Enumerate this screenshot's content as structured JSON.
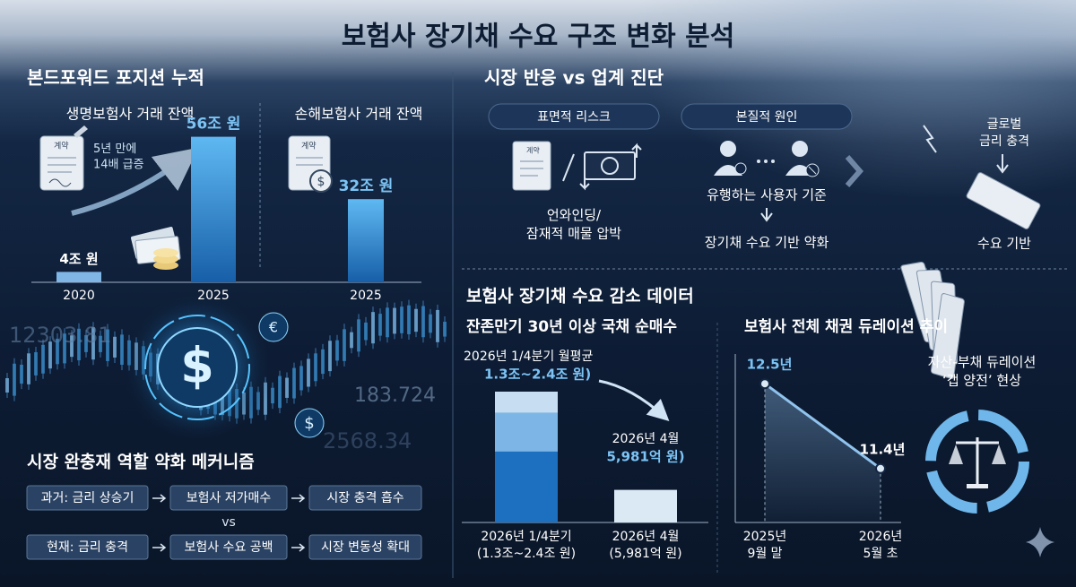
{
  "title": "보험사 장기채 수요 구조 변화 분석",
  "bond_forward": {
    "heading": "본드포워드 포지션 누적",
    "contract_label": "계약",
    "growth_note": "5년 만에\n14배 급증"
  },
  "market": {
    "heading": "시장 반응 vs 업계 진단",
    "surface_risk": "표면적 리스크",
    "root_cause": "본질적 원인",
    "unwinding": "언와인딩/\n잠재적 매물 압박",
    "user_standard": "유행하는 사용자 기준",
    "demand_weakening": "장기채 수요 기반 약화",
    "global_shock": "글로벌\n금리 충격",
    "demand_base": "수요 기반"
  },
  "decor_numbers": [
    "12303.81",
    "183.724",
    "2568.34"
  ],
  "decor_symbols": {
    "dollar": "$",
    "euro": "€"
  },
  "mechanism": {
    "heading": "시장 완충재 역할 약화 메커니즘",
    "rows": [
      [
        "과거: 금리 상승기",
        "보험사 저가매수",
        "시장 충격 흡수"
      ],
      [
        "현재: 금리 충격",
        "보험사 수요 공백",
        "시장 변동성 확대"
      ]
    ],
    "vs": "vs"
  },
  "data_section": {
    "heading": "보험사 장기채 수요 감소 데이터",
    "gap_note": "자산-부채 듀레이션\n‘갭 양전’ 현상"
  },
  "chart_data": [
    {
      "type": "bar",
      "title": "생명보험사 거래 잔액",
      "categories": [
        "2020",
        "2025"
      ],
      "values": [
        4,
        56
      ],
      "value_labels": [
        "4조 원",
        "56조 원"
      ],
      "color": "#2f8fd8"
    },
    {
      "type": "bar",
      "title": "손해보험사 거래 잔액",
      "categories": [
        "2025"
      ],
      "values": [
        32
      ],
      "value_labels": [
        "32조 원"
      ],
      "color": "#2f8fd8"
    },
    {
      "type": "range_bar",
      "title": "잔존만기 30년 이상 국채 순매수",
      "categories": [
        "2026년 1/4분기\n(1.3조~2.4조 원)",
        "2026년 4월\n(5,981억 원)"
      ],
      "values": [
        13000,
        5981
      ],
      "upper_values": [
        24000,
        null
      ],
      "annotations": [
        {
          "text": "2026년 1/4분기 월평균",
          "value": "1.3조~2.4조 원)"
        },
        {
          "text": "2026년 4월",
          "value": "5,981억 원)"
        }
      ],
      "color": "#1d6fc0"
    },
    {
      "type": "line",
      "title": "보험사 전체 채권 듀레이션 추이",
      "categories": [
        "2025년\n9월 말",
        "2026년\n5월 초"
      ],
      "values": [
        12.5,
        11.4
      ],
      "value_labels": [
        "12.5년",
        "11.4년"
      ],
      "color": "#8fc3ee"
    }
  ]
}
